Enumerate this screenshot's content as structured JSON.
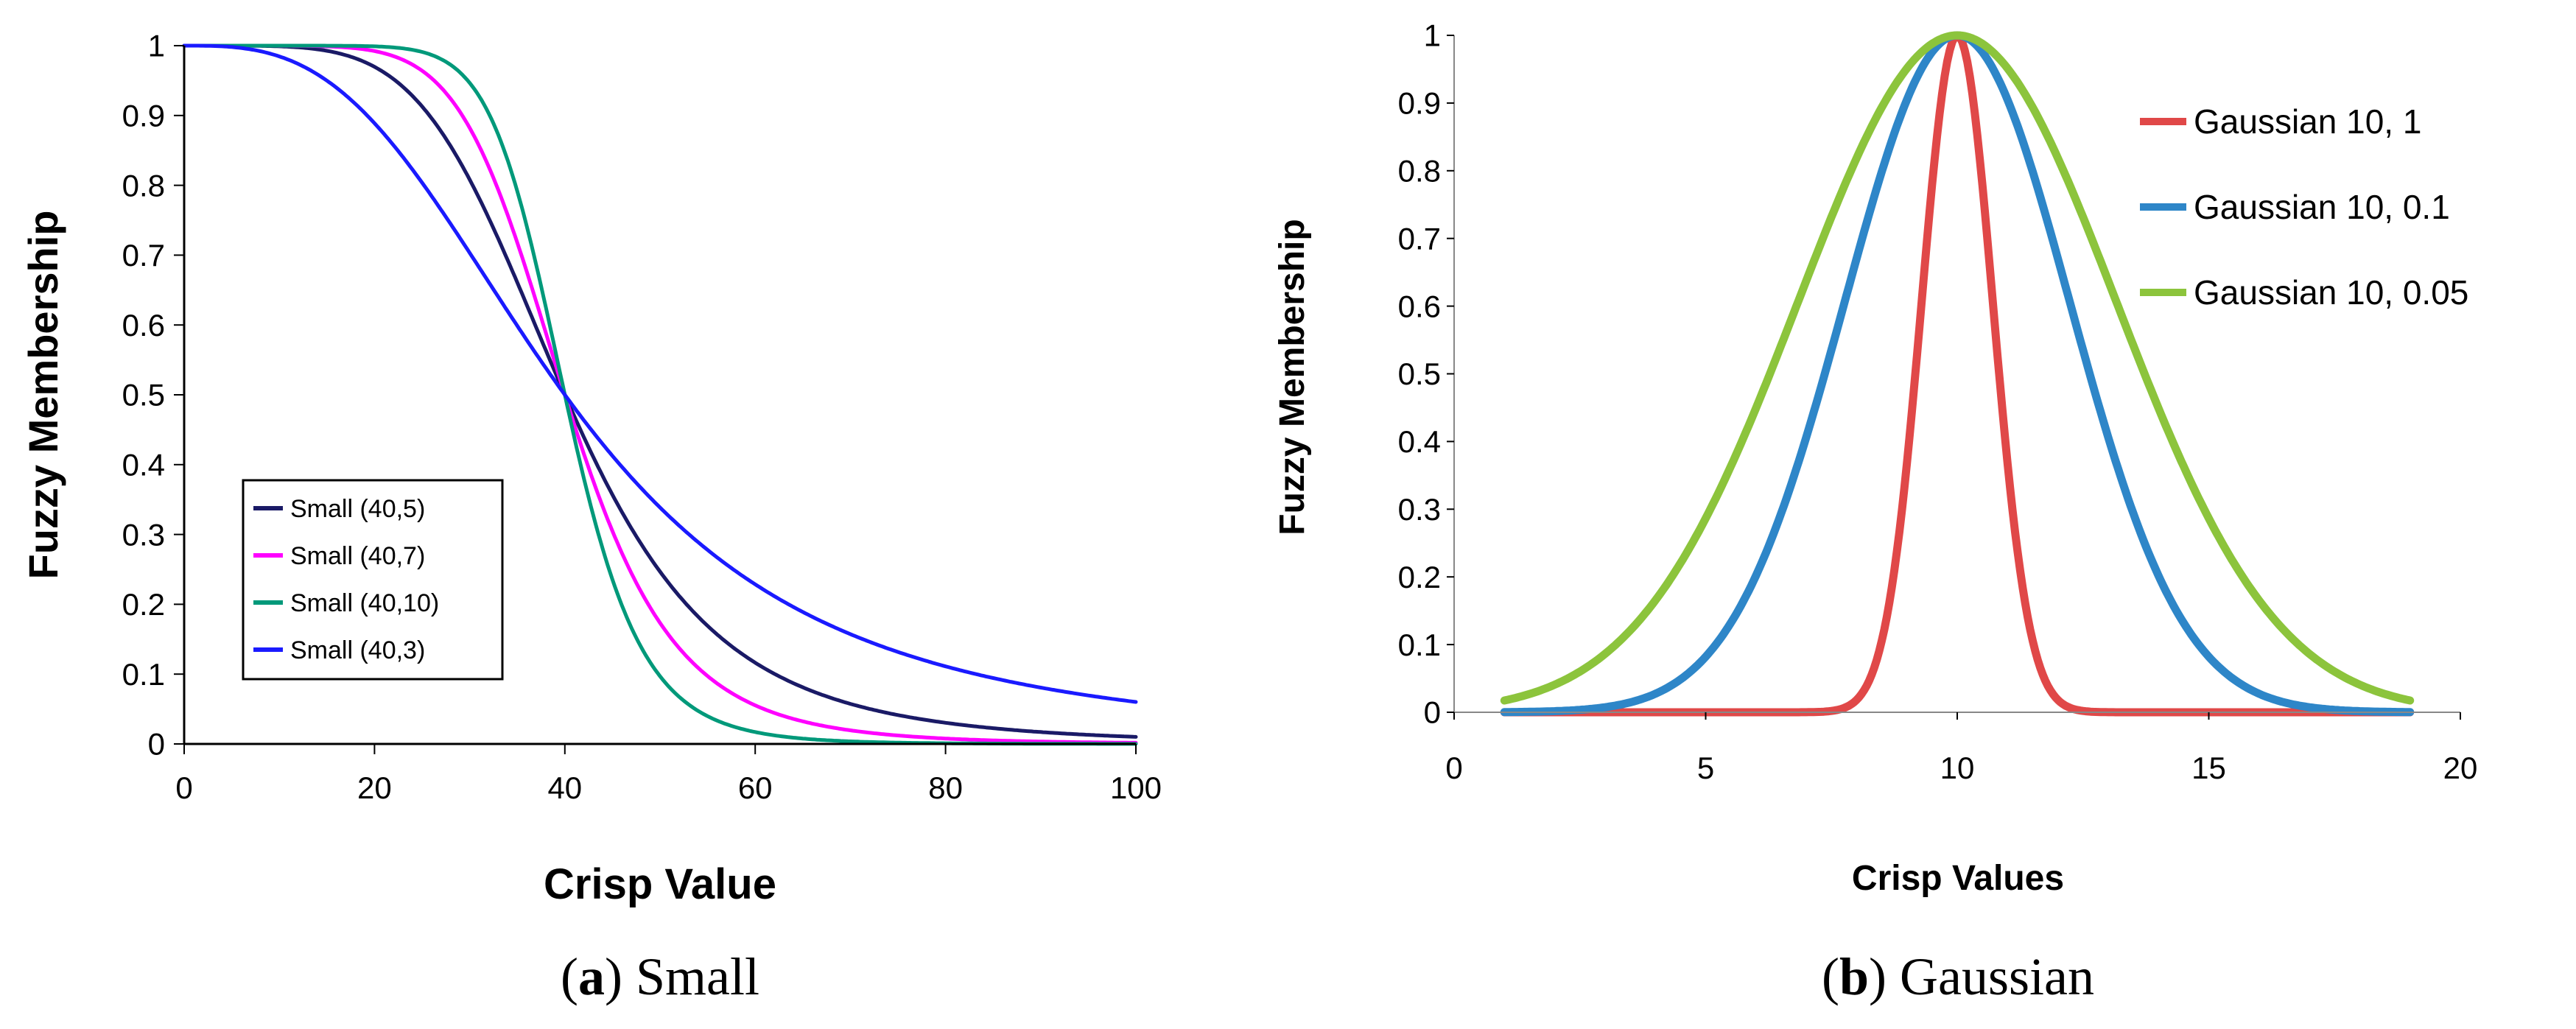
{
  "chart_data": [
    {
      "type": "line",
      "title": "",
      "xlabel": "Crisp Value",
      "ylabel": "Fuzzy Membership",
      "xlim": [
        0,
        100
      ],
      "ylim": [
        0,
        1
      ],
      "xticks": [
        0,
        20,
        40,
        60,
        80,
        100
      ],
      "yticks": [
        0,
        0.1,
        0.2,
        0.3,
        0.4,
        0.5,
        0.6,
        0.7,
        0.8,
        0.9,
        1
      ],
      "grid": false,
      "legend_position": "bottom-left",
      "caption": {
        "letter": "a",
        "text": "Small"
      },
      "series": [
        {
          "name": "Small (40,5)",
          "color": "#1a1a66",
          "function": "small",
          "midpoint": 40,
          "spread": 5
        },
        {
          "name": "Small (40,7)",
          "color": "#ff00ff",
          "function": "small",
          "midpoint": 40,
          "spread": 7
        },
        {
          "name": "Small (40,10)",
          "color": "#00997a",
          "function": "small",
          "midpoint": 40,
          "spread": 10
        },
        {
          "name": "Small (40,3)",
          "color": "#1a1aff",
          "function": "small",
          "midpoint": 40,
          "spread": 3
        }
      ]
    },
    {
      "type": "line",
      "title": "",
      "xlabel": "Crisp Values",
      "ylabel": "Fuzzy Membership",
      "xlim": [
        0,
        20
      ],
      "ylim": [
        0,
        1
      ],
      "xticks": [
        0,
        5,
        10,
        15,
        20
      ],
      "yticks": [
        0,
        0.1,
        0.2,
        0.3,
        0.4,
        0.5,
        0.6,
        0.7,
        0.8,
        0.9,
        1
      ],
      "grid": false,
      "legend_position": "top-right",
      "caption": {
        "letter": "b",
        "text": "Gaussian"
      },
      "series": [
        {
          "name": "Gaussian 10, 1",
          "color": "#e04848",
          "function": "gaussian",
          "midpoint": 10,
          "spread": 1
        },
        {
          "name": "Gaussian 10, 0.1",
          "color": "#2e86c8",
          "function": "gaussian",
          "midpoint": 10,
          "spread": 0.1
        },
        {
          "name": "Gaussian 10, 0.05",
          "color": "#8cc43c",
          "function": "gaussian",
          "midpoint": 10,
          "spread": 0.05
        }
      ]
    }
  ]
}
